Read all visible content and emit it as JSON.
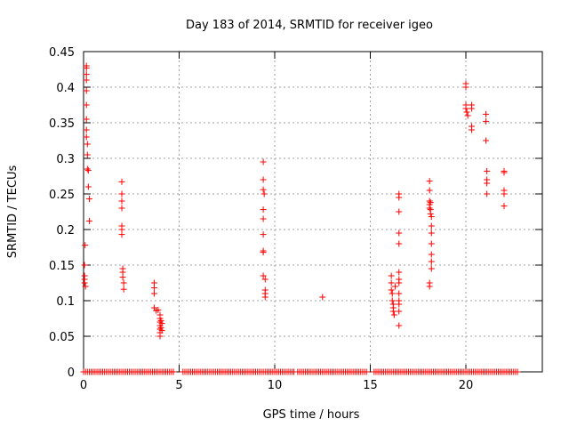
{
  "chart_data": {
    "type": "scatter",
    "title": "Day 183 of 2014, SRMTID for receiver igeo",
    "xlabel": "GPS time / hours",
    "ylabel": "SRMTID / TECUs",
    "xlim": [
      0,
      24
    ],
    "ylim": [
      0,
      0.45
    ],
    "xticks": [
      0,
      5,
      10,
      15,
      20
    ],
    "yticks": [
      0,
      0.05,
      0.1,
      0.15,
      0.2,
      0.25,
      0.3,
      0.35,
      0.4,
      0.45
    ],
    "ytick_labels": [
      "0",
      "0.05",
      "0.1",
      "0.15",
      "0.2",
      "0.25",
      "0.3",
      "0.35",
      "0.4",
      "0.45"
    ],
    "grid": true,
    "legend": "none",
    "marker": "+",
    "color": "#ff0000",
    "zero_floor_ranges": [
      [
        0.0,
        4.7
      ],
      [
        5.2,
        11.0
      ],
      [
        11.2,
        14.8
      ],
      [
        15.2,
        22.7
      ]
    ],
    "series": [
      {
        "name": "SRMTID",
        "points": [
          [
            0.05,
            0.125
          ],
          [
            0.05,
            0.13
          ],
          [
            0.05,
            0.135
          ],
          [
            0.05,
            0.15
          ],
          [
            0.08,
            0.178
          ],
          [
            0.1,
            0.12
          ],
          [
            0.15,
            0.43
          ],
          [
            0.15,
            0.427
          ],
          [
            0.15,
            0.418
          ],
          [
            0.15,
            0.41
          ],
          [
            0.15,
            0.395
          ],
          [
            0.15,
            0.375
          ],
          [
            0.15,
            0.355
          ],
          [
            0.15,
            0.34
          ],
          [
            0.15,
            0.33
          ],
          [
            0.2,
            0.32
          ],
          [
            0.2,
            0.305
          ],
          [
            0.2,
            0.285
          ],
          [
            0.25,
            0.283
          ],
          [
            0.25,
            0.26
          ],
          [
            0.3,
            0.243
          ],
          [
            0.3,
            0.212
          ],
          [
            2.0,
            0.267
          ],
          [
            2.0,
            0.25
          ],
          [
            2.0,
            0.24
          ],
          [
            2.0,
            0.23
          ],
          [
            2.0,
            0.205
          ],
          [
            2.0,
            0.2
          ],
          [
            2.0,
            0.193
          ],
          [
            2.05,
            0.145
          ],
          [
            2.05,
            0.14
          ],
          [
            2.05,
            0.133
          ],
          [
            2.1,
            0.125
          ],
          [
            2.1,
            0.116
          ],
          [
            3.7,
            0.125
          ],
          [
            3.7,
            0.118
          ],
          [
            3.7,
            0.11
          ],
          [
            3.7,
            0.09
          ],
          [
            3.8,
            0.086
          ],
          [
            3.9,
            0.087
          ],
          [
            4.0,
            0.08
          ],
          [
            4.0,
            0.075
          ],
          [
            4.0,
            0.07
          ],
          [
            4.0,
            0.065
          ],
          [
            4.0,
            0.06
          ],
          [
            4.0,
            0.055
          ],
          [
            4.0,
            0.05
          ],
          [
            4.05,
            0.072
          ],
          [
            4.05,
            0.062
          ],
          [
            4.1,
            0.068
          ],
          [
            4.1,
            0.058
          ],
          [
            9.4,
            0.295
          ],
          [
            9.4,
            0.27
          ],
          [
            9.4,
            0.256
          ],
          [
            9.45,
            0.25
          ],
          [
            9.4,
            0.228
          ],
          [
            9.4,
            0.215
          ],
          [
            9.4,
            0.193
          ],
          [
            9.4,
            0.17
          ],
          [
            9.4,
            0.168
          ],
          [
            9.4,
            0.135
          ],
          [
            9.5,
            0.13
          ],
          [
            9.5,
            0.115
          ],
          [
            9.5,
            0.11
          ],
          [
            9.5,
            0.105
          ],
          [
            12.5,
            0.105
          ],
          [
            16.1,
            0.135
          ],
          [
            16.1,
            0.125
          ],
          [
            16.1,
            0.115
          ],
          [
            16.15,
            0.11
          ],
          [
            16.15,
            0.1
          ],
          [
            16.2,
            0.095
          ],
          [
            16.2,
            0.09
          ],
          [
            16.2,
            0.085
          ],
          [
            16.25,
            0.08
          ],
          [
            16.3,
            0.12
          ],
          [
            16.5,
            0.25
          ],
          [
            16.5,
            0.245
          ],
          [
            16.5,
            0.225
          ],
          [
            16.5,
            0.195
          ],
          [
            16.5,
            0.18
          ],
          [
            16.5,
            0.14
          ],
          [
            16.5,
            0.13
          ],
          [
            16.5,
            0.125
          ],
          [
            16.5,
            0.11
          ],
          [
            16.5,
            0.1
          ],
          [
            16.5,
            0.095
          ],
          [
            16.5,
            0.085
          ],
          [
            16.5,
            0.065
          ],
          [
            18.1,
            0.268
          ],
          [
            18.1,
            0.255
          ],
          [
            18.1,
            0.24
          ],
          [
            18.1,
            0.235
          ],
          [
            18.1,
            0.23
          ],
          [
            18.15,
            0.238
          ],
          [
            18.15,
            0.228
          ],
          [
            18.15,
            0.222
          ],
          [
            18.2,
            0.218
          ],
          [
            18.2,
            0.205
          ],
          [
            18.2,
            0.195
          ],
          [
            18.2,
            0.18
          ],
          [
            18.2,
            0.165
          ],
          [
            18.2,
            0.155
          ],
          [
            18.2,
            0.145
          ],
          [
            18.1,
            0.125
          ],
          [
            18.1,
            0.12
          ],
          [
            20.0,
            0.405
          ],
          [
            20.0,
            0.4
          ],
          [
            20.0,
            0.375
          ],
          [
            20.0,
            0.37
          ],
          [
            20.05,
            0.365
          ],
          [
            20.1,
            0.36
          ],
          [
            20.3,
            0.375
          ],
          [
            20.3,
            0.37
          ],
          [
            20.3,
            0.345
          ],
          [
            20.3,
            0.34
          ],
          [
            21.05,
            0.362
          ],
          [
            21.05,
            0.352
          ],
          [
            21.05,
            0.325
          ],
          [
            21.1,
            0.282
          ],
          [
            21.1,
            0.27
          ],
          [
            21.1,
            0.265
          ],
          [
            21.1,
            0.25
          ],
          [
            22.0,
            0.282
          ],
          [
            22.0,
            0.28
          ],
          [
            22.0,
            0.255
          ],
          [
            22.0,
            0.25
          ],
          [
            22.0,
            0.233
          ]
        ]
      }
    ]
  }
}
